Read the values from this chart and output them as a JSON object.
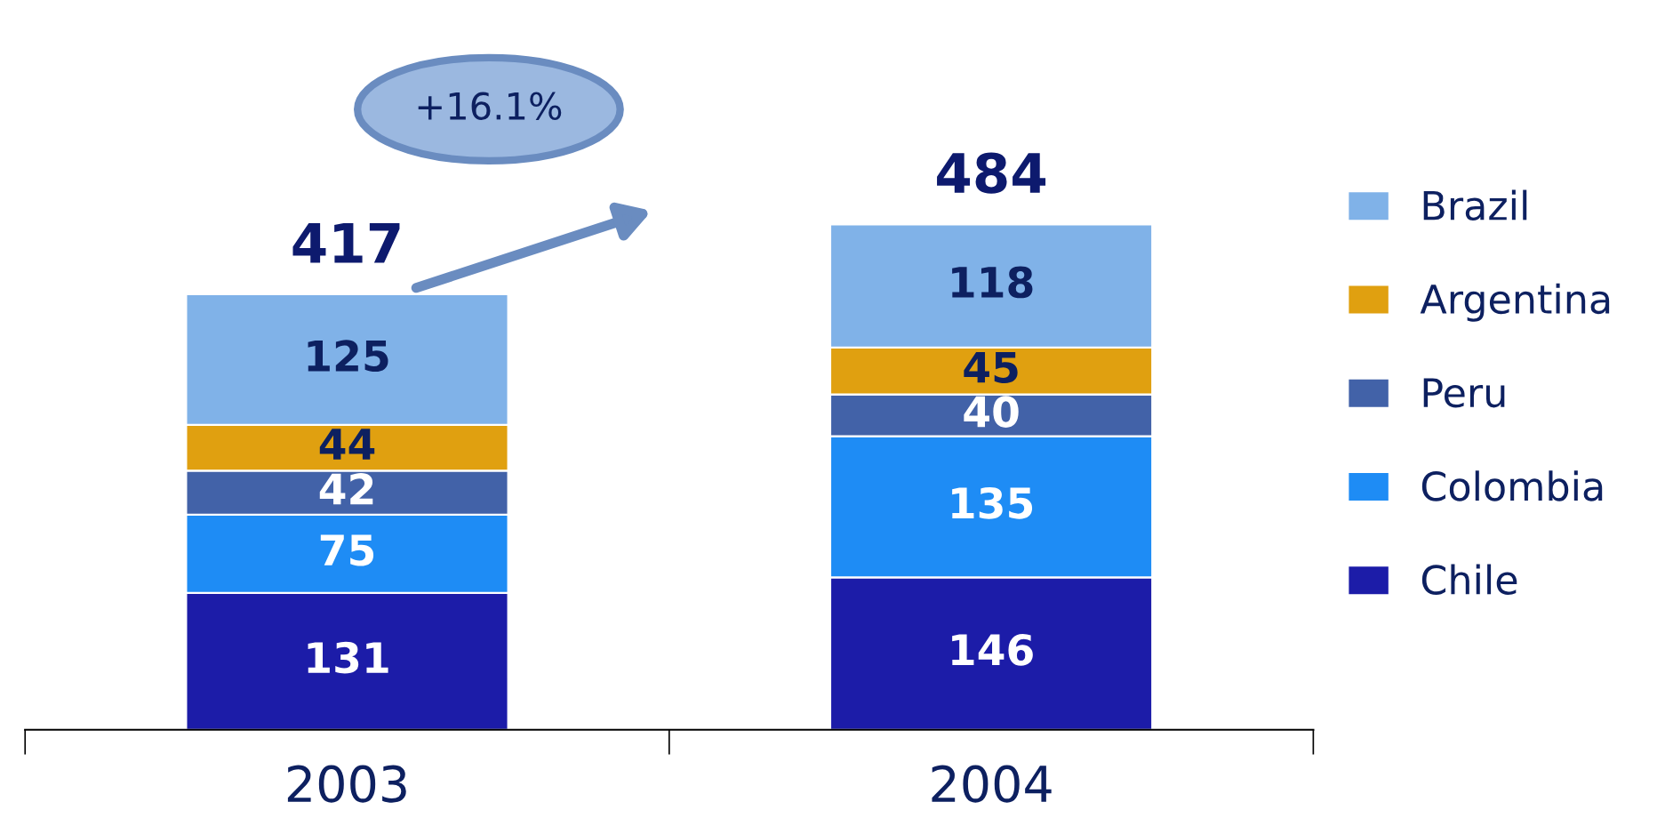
{
  "chart_data": {
    "type": "bar",
    "stacked": true,
    "categories": [
      "2003",
      "2004"
    ],
    "series": [
      {
        "name": "Chile",
        "color": "#1c1ca8",
        "values": [
          131,
          146
        ]
      },
      {
        "name": "Colombia",
        "color": "#1e8cf5",
        "values": [
          75,
          135
        ]
      },
      {
        "name": "Peru",
        "color": "#4262a8",
        "values": [
          42,
          40
        ]
      },
      {
        "name": "Argentina",
        "color": "#e0a010",
        "values": [
          44,
          45
        ]
      },
      {
        "name": "Brazil",
        "color": "#80b2e8",
        "values": [
          125,
          118
        ]
      }
    ],
    "data_labels": true,
    "totals": [
      "417",
      "484"
    ],
    "annotations": [
      "+16.1%"
    ],
    "legend": "right",
    "grid": false
  }
}
